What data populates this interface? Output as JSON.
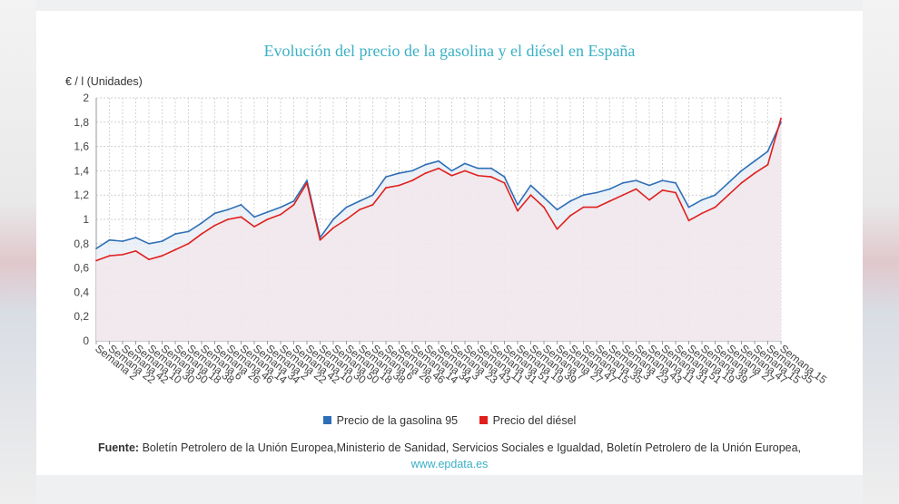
{
  "title": "Evolución del precio de la gasolina y el diésel en España",
  "source": {
    "label": "Fuente:",
    "text": "Boletín Petrolero de la Unión Europea,Ministerio de Sanidad, Servicios Sociales e Igualdad, Boletín Petrolero de la Unión Europea,",
    "link": "www.epdata.es"
  },
  "colors": {
    "gasolina": "#2f6fb6",
    "diesel": "#e0201c",
    "title": "#3ab0c4",
    "fill": "#f3e6ea"
  },
  "chart_data": {
    "type": "line",
    "ylabel": "€ / l (Unidades)",
    "ylim": [
      0,
      2
    ],
    "yticks": [
      "0",
      "0,2",
      "0,4",
      "0,6",
      "0,8",
      "1",
      "1,2",
      "1,4",
      "1,6",
      "1,8",
      "2"
    ],
    "grid": true,
    "legend_position": "bottom",
    "categories": [
      "Semana 2",
      "Semana 22",
      "Semana 42",
      "Semana 10",
      "Semana 30",
      "Semana 50",
      "Semana 18",
      "Semana 38",
      "Semana 6",
      "Semana 26",
      "Semana 46",
      "Semana 14",
      "Semana 34",
      "Semana 2",
      "Semana 22",
      "Semana 42",
      "Semana 10",
      "Semana 30",
      "Semana 50",
      "Semana 18",
      "Semana 38",
      "Semana 6",
      "Semana 26",
      "Semana 46",
      "Semana 14",
      "Semana 34",
      "Semana 3",
      "Semana 23",
      "Semana 43",
      "Semana 11",
      "Semana 31",
      "Semana 51",
      "Semana 19",
      "Semana 39",
      "Semana 7",
      "Semana 27",
      "Semana 47",
      "Semana 15",
      "Semana 35",
      "Semana 3",
      "Semana 23",
      "Semana 43",
      "Semana 11",
      "Semana 31",
      "Semana 51",
      "Semana 19",
      "Semana 39",
      "Semana 7",
      "Semana 27",
      "Semana 47",
      "Semana 15",
      "Semana 35",
      "Semana 15"
    ],
    "series": [
      {
        "name": "Precio de la gasolina 95",
        "values": [
          0.76,
          0.83,
          0.82,
          0.85,
          0.8,
          0.82,
          0.88,
          0.9,
          0.97,
          1.05,
          1.08,
          1.12,
          1.02,
          1.06,
          1.1,
          1.15,
          1.32,
          0.85,
          1.0,
          1.1,
          1.15,
          1.2,
          1.35,
          1.38,
          1.4,
          1.45,
          1.48,
          1.4,
          1.46,
          1.42,
          1.42,
          1.35,
          1.12,
          1.28,
          1.18,
          1.08,
          1.15,
          1.2,
          1.22,
          1.25,
          1.3,
          1.32,
          1.28,
          1.32,
          1.3,
          1.1,
          1.16,
          1.2,
          1.3,
          1.4,
          1.48,
          1.56,
          1.8
        ]
      },
      {
        "name": "Precio del diésel",
        "values": [
          0.66,
          0.7,
          0.71,
          0.74,
          0.67,
          0.7,
          0.75,
          0.8,
          0.88,
          0.95,
          1.0,
          1.02,
          0.94,
          1.0,
          1.04,
          1.12,
          1.3,
          0.83,
          0.93,
          1.0,
          1.08,
          1.12,
          1.26,
          1.28,
          1.32,
          1.38,
          1.42,
          1.36,
          1.4,
          1.36,
          1.35,
          1.3,
          1.07,
          1.2,
          1.1,
          0.92,
          1.03,
          1.1,
          1.1,
          1.15,
          1.2,
          1.25,
          1.16,
          1.24,
          1.22,
          0.99,
          1.05,
          1.1,
          1.2,
          1.3,
          1.38,
          1.45,
          1.83
        ]
      }
    ]
  }
}
